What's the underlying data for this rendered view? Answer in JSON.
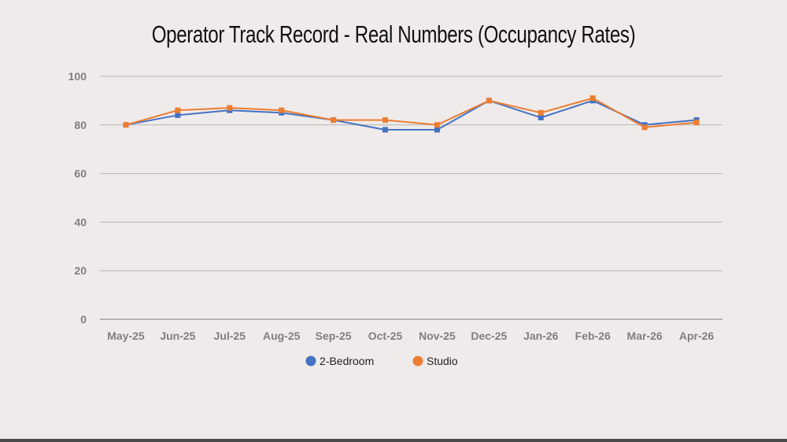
{
  "title": "Operator Track Record - Real Numbers (Occupancy Rates)",
  "chart_data": {
    "type": "line",
    "title": "Operator Track Record - Real Numbers (Occupancy Rates)",
    "xlabel": "",
    "ylabel": "",
    "categories": [
      "May-25",
      "Jun-25",
      "Jul-25",
      "Aug-25",
      "Sep-25",
      "Oct-25",
      "Nov-25",
      "Dec-25",
      "Jan-26",
      "Feb-26",
      "Mar-26",
      "Apr-26"
    ],
    "ylim": [
      0,
      100
    ],
    "yticks": [
      0,
      20,
      40,
      60,
      80,
      100
    ],
    "grid": "horizontal",
    "legend_position": "bottom",
    "series": [
      {
        "name": "2-Bedroom",
        "color": "#4472c4",
        "values": [
          80,
          84,
          86,
          85,
          82,
          78,
          78,
          90,
          83,
          90,
          80,
          82
        ]
      },
      {
        "name": "Studio",
        "color": "#ed7d31",
        "values": [
          80,
          86,
          87,
          86,
          82,
          82,
          80,
          90,
          85,
          91,
          79,
          81
        ]
      }
    ]
  }
}
